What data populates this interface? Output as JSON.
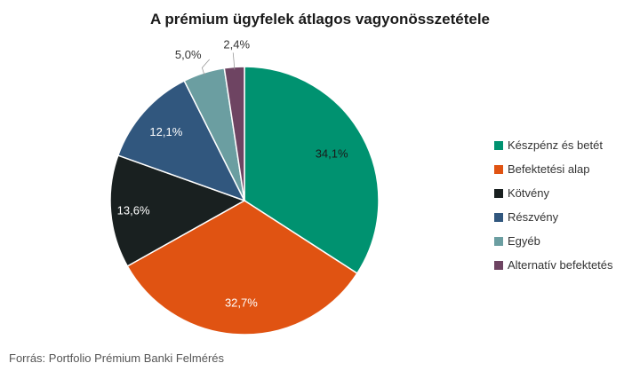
{
  "chart_data": {
    "type": "pie",
    "title": "A prémium ügyfelek átlagos vagyonösszetétele",
    "slices": [
      {
        "label": "Készpénz és betét",
        "value": 34.1,
        "value_label": "34,1%",
        "color": "#009270"
      },
      {
        "label": "Befektetési alap",
        "value": 32.7,
        "value_label": "32,7%",
        "color": "#e05312"
      },
      {
        "label": "Kötvény",
        "value": 13.6,
        "value_label": "13,6%",
        "color": "#192020"
      },
      {
        "label": "Részvény",
        "value": 12.1,
        "value_label": "12,1%",
        "color": "#31577e"
      },
      {
        "label": "Egyéb",
        "value": 5.0,
        "value_label": "5,0%",
        "color": "#6b9ea1"
      },
      {
        "label": "Alternatív befektetés",
        "value": 2.4,
        "value_label": "2,4%",
        "color": "#6e4462"
      }
    ],
    "legend_position": "right"
  },
  "source": "Forrás: Portfolio Prémium Banki Felmérés"
}
